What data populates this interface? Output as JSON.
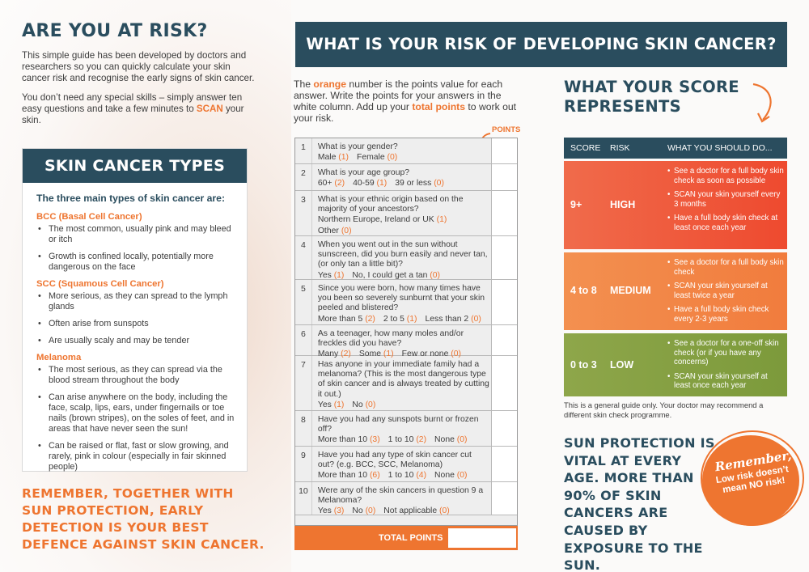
{
  "left": {
    "title": "ARE YOU AT RISK?",
    "intro_p1": "This simple guide has been developed by doctors and researchers so you can quickly calculate your skin cancer risk and recognise the early signs of skin cancer.",
    "intro_p2_a": "You don’t need any special skills – simply answer ten easy questions and take a few minutes to ",
    "intro_p2_scan": "SCAN",
    "intro_p2_b": " your skin.",
    "types_title": "SKIN CANCER TYPES",
    "types_lead": "The three main types of skin cancer are:",
    "groups": [
      {
        "heading": "BCC (Basal Cell Cancer)",
        "items": [
          "The most common, usually pink and may bleed or itch",
          "Growth is confined locally, potentially more dangerous on the face"
        ]
      },
      {
        "heading": "SCC (Squamous Cell Cancer)",
        "items": [
          "More serious, as they can spread to the lymph glands",
          "Often arise from sunspots",
          "Are usually scaly and may be tender"
        ]
      },
      {
        "heading": "Melanoma",
        "items": [
          "The most serious, as they can spread via the blood stream throughout the body",
          "Can arise anywhere on the body, including the face, scalp, lips, ears, under fingernails or toe nails (brown stripes), on the soles of  feet, and in areas that have never seen the sun!",
          "Can be raised or flat, fast or slow growing, and rarely, pink in colour (especially in fair skinned people)"
        ]
      }
    ],
    "remember": "REMEMBER, TOGETHER WITH SUN PROTECTION, EARLY DETECTION IS YOUR BEST DEFENCE AGAINST SKIN CANCER."
  },
  "middle": {
    "banner": "WHAT IS YOUR RISK OF DEVELOPING SKIN CANCER?",
    "intro_a": "The ",
    "intro_orange": "orange",
    "intro_b": " number is the points value for each answer. Write the points for your answers in the white column. Add up your ",
    "intro_total": "total points",
    "intro_c": " to work out your risk.",
    "points_label": "POINTS",
    "questions": [
      {
        "n": "1",
        "q": "What is your gender?",
        "a": [
          [
            "Male",
            "(1)"
          ],
          [
            "Female",
            "(0)"
          ]
        ]
      },
      {
        "n": "2",
        "q": "What is your age group?",
        "a": [
          [
            "60+",
            "(2)"
          ],
          [
            "40-59",
            "(1)"
          ],
          [
            "39 or less",
            "(0)"
          ]
        ]
      },
      {
        "n": "3",
        "q": "What is your ethnic origin based on the majority of your ancestors?",
        "a": [
          [
            "Northern Europe, Ireland or UK",
            "(1)"
          ],
          [
            "Other",
            "(0)"
          ]
        ],
        "stack": true
      },
      {
        "n": "4",
        "q": "When you went out in the sun without sunscreen, did you burn easily and never tan, (or only tan a little bit)?",
        "a": [
          [
            "Yes",
            "(1)"
          ],
          [
            "No, I could get a tan",
            "(0)"
          ]
        ]
      },
      {
        "n": "5",
        "q": "Since you were born, how many times have you been so severely sunburnt that your skin peeled and blistered?",
        "a": [
          [
            "More than 5",
            "(2)"
          ],
          [
            "2 to 5",
            "(1)"
          ],
          [
            "Less than 2",
            "(0)"
          ]
        ]
      },
      {
        "n": "6",
        "q": "As a teenager, how many moles and/or freckles did you have?",
        "a": [
          [
            "Many",
            "(2)"
          ],
          [
            "Some",
            "(1)"
          ],
          [
            "Few or none",
            "(0)"
          ]
        ]
      },
      {
        "n": "7",
        "q": "Has anyone in your immediate family had a melanoma? (This is the most dangerous type of skin cancer and is always treated by cutting it out.)",
        "a": [
          [
            "Yes",
            "(1)"
          ],
          [
            "No",
            "(0)"
          ]
        ]
      },
      {
        "n": "8",
        "q": "Have you had any sunspots burnt or frozen off?",
        "a": [
          [
            "More than 10",
            "(3)"
          ],
          [
            "1 to 10",
            "(2)"
          ],
          [
            "None",
            "(0)"
          ]
        ]
      },
      {
        "n": "9",
        "q": "Have you had any type of skin cancer cut out? (e.g. BCC, SCC, Melanoma)",
        "a": [
          [
            "More than 10",
            "(6)"
          ],
          [
            "1 to 10",
            "(4)"
          ],
          [
            "None",
            "(0)"
          ]
        ]
      },
      {
        "n": "10",
        "q": "Were any of the skin cancers in question 9 a Melanoma?",
        "a": [
          [
            "Yes",
            "(3)"
          ],
          [
            "No",
            "(0)"
          ],
          [
            "Not applicable",
            "(0)"
          ]
        ]
      }
    ],
    "total_label": "TOTAL POINTS"
  },
  "right": {
    "title": "WHAT YOUR SCORE REPRESENTS",
    "head_score": "SCORE",
    "head_risk": "RISK",
    "head_do": "WHAT YOU SHOULD DO...",
    "bands": [
      {
        "score": "9+",
        "risk": "HIGH",
        "items": [
          "See a doctor for a full body skin check as soon as possible",
          "SCAN your skin yourself every 3 months",
          "Have a full body skin check at least once each year"
        ]
      },
      {
        "score": "4 to 8",
        "risk": "MEDIUM",
        "items": [
          "See a doctor for a full body skin check",
          "SCAN your skin yourself at least twice a year",
          "Have a full body skin check every 2-3 years"
        ]
      },
      {
        "score": "0 to 3",
        "risk": "LOW",
        "items": [
          "See a doctor for a one-off skin check (or if you have any concerns)",
          "SCAN your skin yourself at least once each year"
        ]
      }
    ],
    "guide": "This is a general guide only. Your doctor may recommend a different skin check programme.",
    "sun": "SUN PROTECTION IS VITAL AT EVERY AGE. MORE THAN 90% OF SKIN CANCERS ARE CAUSED BY EXPOSURE TO THE SUN.",
    "remember_a": "Remember,",
    "remember_b": "Low risk doesn’t mean NO risk!"
  },
  "colors": {
    "navy": "#2a4d5e",
    "orange": "#ee7530",
    "high": "#ee4a2f",
    "medium": "#f17c3d",
    "low": "#7c9a3b"
  }
}
